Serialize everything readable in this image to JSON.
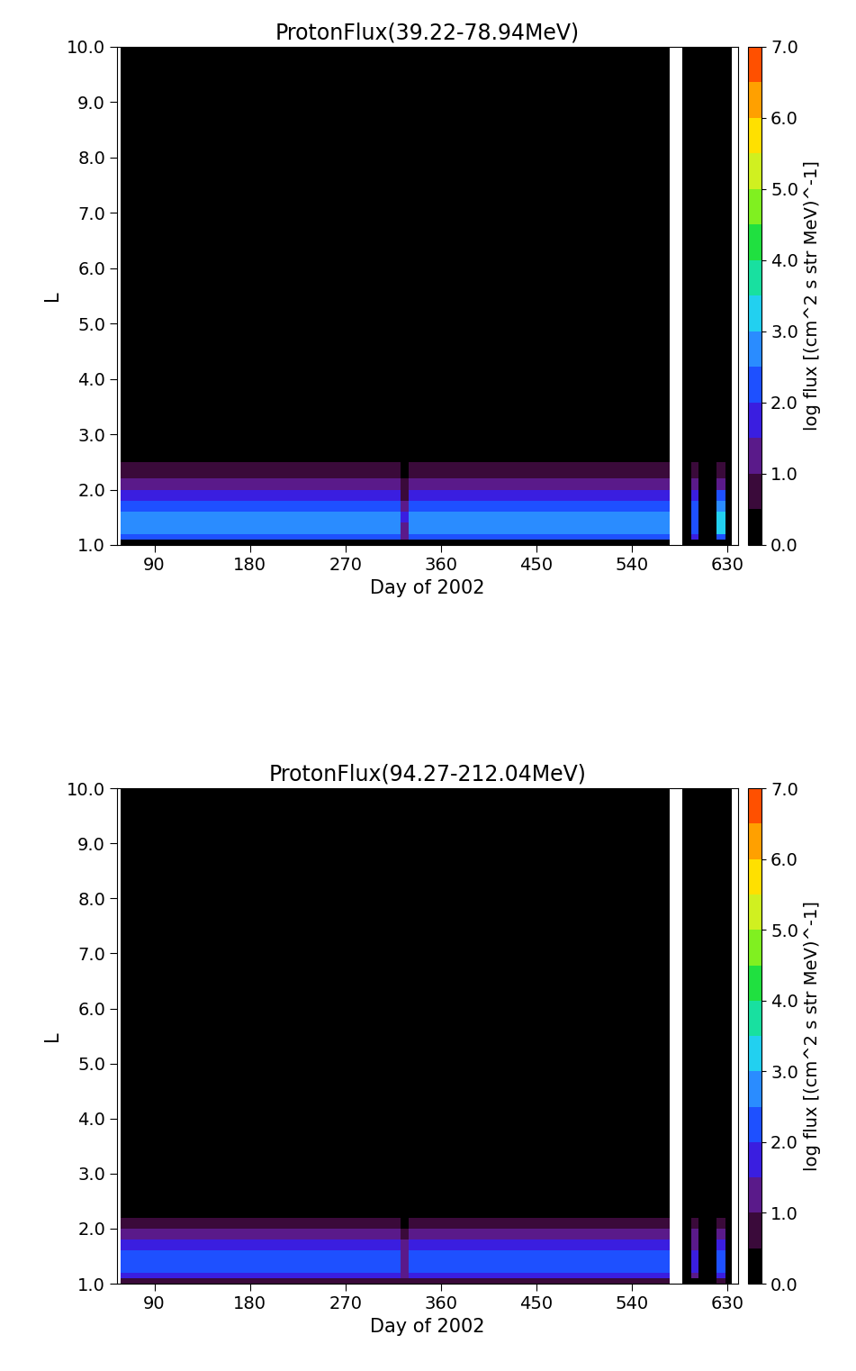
{
  "chart_data": [
    {
      "type": "heatmap",
      "title": "ProtonFlux(39.22-78.94MeV)",
      "x_label": "Day of 2002",
      "y_label": "L",
      "xlim": [
        55,
        640
      ],
      "ylim": [
        1.0,
        10.0
      ],
      "xticks": [
        90,
        180,
        270,
        360,
        450,
        540,
        630
      ],
      "yticks": [
        {
          "value": 1.0,
          "label": "1.0"
        },
        {
          "value": 2.0,
          "label": "2.0"
        },
        {
          "value": 3.0,
          "label": "3.0"
        },
        {
          "value": 4.0,
          "label": "4.0"
        },
        {
          "value": 5.0,
          "label": "5.0"
        },
        {
          "value": 6.0,
          "label": "6.0"
        },
        {
          "value": 7.0,
          "label": "7.0"
        },
        {
          "value": 8.0,
          "label": "8.0"
        },
        {
          "value": 9.0,
          "label": "9.0"
        },
        {
          "value": 10.0,
          "label": "10.0"
        }
      ],
      "x_edges": [
        58,
        90,
        150,
        210,
        270,
        322,
        330,
        390,
        450,
        510,
        576,
        588,
        596,
        603,
        620,
        628,
        634
      ],
      "y_edges": [
        1.0,
        1.1,
        1.2,
        1.4,
        1.6,
        1.8,
        2.0,
        2.2,
        2.5,
        3.0,
        10.0
      ],
      "cells": [
        [
          0.2,
          0.2,
          0.2,
          0.2,
          0.2,
          0.2,
          0.2,
          0.2,
          0.2,
          0.2,
          null,
          0.2,
          0.2,
          0.2,
          0.2,
          0.2
        ],
        [
          2.2,
          2.2,
          2.2,
          2.2,
          2.2,
          1.2,
          2.2,
          2.2,
          2.2,
          2.2,
          null,
          0.2,
          1.8,
          0.2,
          2.4,
          0.2
        ],
        [
          2.6,
          2.6,
          2.6,
          2.6,
          2.6,
          1.4,
          2.6,
          2.6,
          2.6,
          2.6,
          null,
          0.2,
          2.2,
          0.2,
          3.0,
          0.2
        ],
        [
          2.7,
          2.7,
          2.7,
          2.7,
          2.7,
          1.5,
          2.7,
          2.7,
          2.7,
          2.7,
          null,
          0.2,
          2.3,
          0.2,
          3.2,
          0.2
        ],
        [
          2.4,
          2.4,
          2.4,
          2.4,
          2.4,
          1.3,
          2.4,
          2.4,
          2.4,
          2.4,
          null,
          0.2,
          2.0,
          0.2,
          2.8,
          0.2
        ],
        [
          1.8,
          1.8,
          1.8,
          1.8,
          1.8,
          0.9,
          1.8,
          1.8,
          1.8,
          1.8,
          null,
          0.2,
          1.6,
          0.2,
          2.2,
          0.2
        ],
        [
          1.1,
          1.1,
          1.1,
          1.1,
          1.1,
          0.5,
          1.1,
          1.2,
          1.2,
          1.1,
          null,
          0.2,
          1.0,
          0.2,
          1.4,
          0.2
        ],
        [
          0.6,
          0.6,
          0.6,
          0.6,
          0.6,
          0.4,
          0.6,
          0.7,
          0.7,
          0.6,
          null,
          0.2,
          0.6,
          0.2,
          0.8,
          0.2
        ],
        [
          0.3,
          0.3,
          0.3,
          0.3,
          0.3,
          0.3,
          0.3,
          0.3,
          0.3,
          0.3,
          null,
          0.2,
          0.3,
          0.2,
          0.4,
          0.2
        ],
        [
          0.1,
          0.1,
          0.1,
          0.1,
          0.1,
          0.1,
          0.1,
          0.1,
          0.1,
          0.1,
          null,
          0.1,
          0.1,
          0.1,
          0.2,
          0.1
        ]
      ],
      "colorbar": {
        "label": "log flux [(cm^2 s str MeV)^-1]",
        "range": [
          0.0,
          7.0
        ],
        "ticks": [
          {
            "value": 0.0,
            "label": "0.0"
          },
          {
            "value": 1.0,
            "label": "1.0"
          },
          {
            "value": 2.0,
            "label": "2.0"
          },
          {
            "value": 3.0,
            "label": "3.0"
          },
          {
            "value": 4.0,
            "label": "4.0"
          },
          {
            "value": 5.0,
            "label": "5.0"
          },
          {
            "value": 6.0,
            "label": "6.0"
          },
          {
            "value": 7.0,
            "label": "7.0"
          }
        ]
      }
    },
    {
      "type": "heatmap",
      "title": "ProtonFlux(94.27-212.04MeV)",
      "x_label": "Day of 2002",
      "y_label": "L",
      "xlim": [
        55,
        640
      ],
      "ylim": [
        1.0,
        10.0
      ],
      "xticks": [
        90,
        180,
        270,
        360,
        450,
        540,
        630
      ],
      "yticks": [
        {
          "value": 1.0,
          "label": "1.0"
        },
        {
          "value": 2.0,
          "label": "2.0"
        },
        {
          "value": 3.0,
          "label": "3.0"
        },
        {
          "value": 4.0,
          "label": "4.0"
        },
        {
          "value": 5.0,
          "label": "5.0"
        },
        {
          "value": 6.0,
          "label": "6.0"
        },
        {
          "value": 7.0,
          "label": "7.0"
        },
        {
          "value": 8.0,
          "label": "8.0"
        },
        {
          "value": 9.0,
          "label": "9.0"
        },
        {
          "value": 10.0,
          "label": "10.0"
        }
      ],
      "x_edges": [
        58,
        90,
        150,
        210,
        270,
        322,
        330,
        390,
        450,
        510,
        576,
        588,
        596,
        603,
        620,
        628,
        634
      ],
      "y_edges": [
        1.0,
        1.1,
        1.2,
        1.4,
        1.6,
        1.8,
        2.0,
        2.2,
        2.5,
        3.0,
        10.0
      ],
      "cells": [
        [
          0.8,
          0.8,
          0.8,
          0.8,
          0.8,
          0.6,
          0.8,
          0.8,
          0.8,
          0.8,
          null,
          0.1,
          0.3,
          0.1,
          0.5,
          0.1
        ],
        [
          1.8,
          1.8,
          1.8,
          1.8,
          1.8,
          1.0,
          1.8,
          1.8,
          1.8,
          1.8,
          null,
          0.1,
          1.2,
          0.1,
          1.6,
          0.1
        ],
        [
          2.0,
          2.0,
          2.0,
          2.0,
          2.0,
          1.2,
          2.0,
          2.0,
          2.0,
          2.0,
          null,
          0.1,
          1.5,
          0.1,
          2.0,
          0.1
        ],
        [
          2.0,
          2.0,
          2.0,
          2.0,
          2.0,
          1.2,
          2.0,
          2.0,
          2.0,
          2.0,
          null,
          0.1,
          1.5,
          0.1,
          2.0,
          0.1
        ],
        [
          1.8,
          1.8,
          1.8,
          1.8,
          1.8,
          1.1,
          1.8,
          1.8,
          1.8,
          1.8,
          null,
          0.1,
          1.3,
          0.1,
          1.8,
          0.1
        ],
        [
          1.3,
          1.3,
          1.3,
          1.3,
          1.3,
          0.8,
          1.3,
          1.3,
          1.3,
          1.3,
          null,
          0.1,
          1.0,
          0.1,
          1.3,
          0.1
        ],
        [
          0.7,
          0.7,
          0.8,
          0.8,
          0.7,
          0.4,
          0.7,
          0.8,
          0.8,
          0.7,
          null,
          0.1,
          0.5,
          0.1,
          0.7,
          0.1
        ],
        [
          0.2,
          0.2,
          0.2,
          0.2,
          0.2,
          0.2,
          0.2,
          0.2,
          0.2,
          0.2,
          null,
          0.1,
          0.1,
          0.1,
          0.2,
          0.1
        ],
        [
          0.1,
          0.1,
          0.1,
          0.1,
          0.1,
          0.1,
          0.1,
          0.1,
          0.1,
          0.1,
          null,
          0.1,
          0.1,
          0.1,
          0.1,
          0.1
        ],
        [
          0.0,
          0.0,
          0.0,
          0.0,
          0.0,
          0.0,
          0.0,
          0.0,
          0.0,
          0.0,
          null,
          0.0,
          0.0,
          0.0,
          0.0,
          0.0
        ]
      ],
      "colorbar": {
        "label": "log flux [(cm^2 s str MeV)^-1]",
        "range": [
          0.0,
          7.0
        ],
        "ticks": [
          {
            "value": 0.0,
            "label": "0.0"
          },
          {
            "value": 1.0,
            "label": "1.0"
          },
          {
            "value": 2.0,
            "label": "2.0"
          },
          {
            "value": 3.0,
            "label": "3.0"
          },
          {
            "value": 4.0,
            "label": "4.0"
          },
          {
            "value": 5.0,
            "label": "5.0"
          },
          {
            "value": 6.0,
            "label": "6.0"
          },
          {
            "value": 7.0,
            "label": "7.0"
          }
        ]
      }
    }
  ]
}
